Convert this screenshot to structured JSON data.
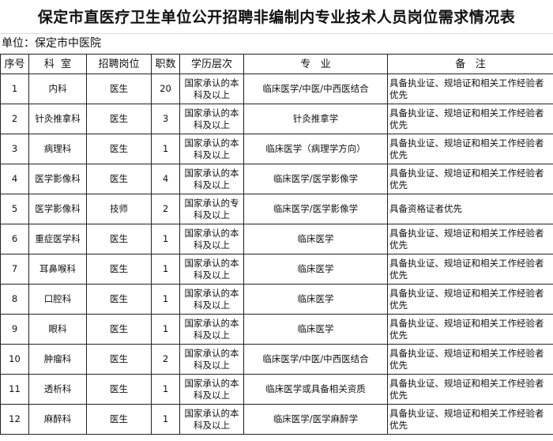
{
  "title": "保定市直医疗卫生单位公开招聘非编制内专业技术人员岗位需求情况表",
  "unit": "单位：保定市中医院",
  "headers": [
    "序号",
    "科  室",
    "招聘岗位",
    "职数",
    "学历层次",
    "专   业",
    "备   注"
  ],
  "rows": [
    [
      "1",
      "内科",
      "医生",
      "20",
      "国家承认的本科及以上",
      "临床医学/中医/中西医结合",
      "具备执业证、规培证和相关工作经验者优先"
    ],
    [
      "2",
      "针灸推拿科",
      "医生",
      "3",
      "国家承认的本科及以上",
      "针灸推拿学",
      "具备执业证、规培证和相关工作经验者优先"
    ],
    [
      "3",
      "病理科",
      "医生",
      "1",
      "国家承认的本科及以上",
      "临床医学（病理学方向）",
      "具备执业证、规培证和相关工作经验者优先"
    ],
    [
      "4",
      "医学影像科",
      "医生",
      "4",
      "国家承认的本科及以上",
      "临床医学/医学影像学",
      "具备执业证、规培证和相关工作经验者优先"
    ],
    [
      "5",
      "医学影像科",
      "技师",
      "2",
      "国家承认的专科及以上",
      "临床医学/医学影像学",
      "具备资格证者优先"
    ],
    [
      "6",
      "重症医学科",
      "医生",
      "1",
      "国家承认的本科及以上",
      "临床医学",
      "具备执业证、规培证和相关工作经验者优先"
    ],
    [
      "7",
      "耳鼻喉科",
      "医生",
      "1",
      "国家承认的本科及以上",
      "临床医学",
      "具备执业证、规培证和相关工作经验者优先"
    ],
    [
      "8",
      "口腔科",
      "医生",
      "1",
      "国家承认的本科及以上",
      "临床医学",
      "具备执业证、规培证和相关工作经验者优先"
    ],
    [
      "9",
      "眼科",
      "医生",
      "1",
      "国家承认的本科及以上",
      "临床医学",
      "具备执业证、规培证和相关工作经验者优先"
    ],
    [
      "10",
      "肿瘤科",
      "医生",
      "2",
      "国家承认的本科及以上",
      "临床医学/中医/中西医结合",
      "具备执业证、规培证和相关工作经验者优先"
    ],
    [
      "11",
      "透析科",
      "医生",
      "1",
      "国家承认的本科及以上",
      "临床医学或具备相关资质",
      "具备执业证、规培证和相关工作经验者优先"
    ],
    [
      "12",
      "麻醉科",
      "医生",
      "1",
      "国家承认的本科及以上",
      "临床医学/医学麻醉学",
      "具备执业证、规培证和相关工作经验者优先"
    ]
  ]
}
